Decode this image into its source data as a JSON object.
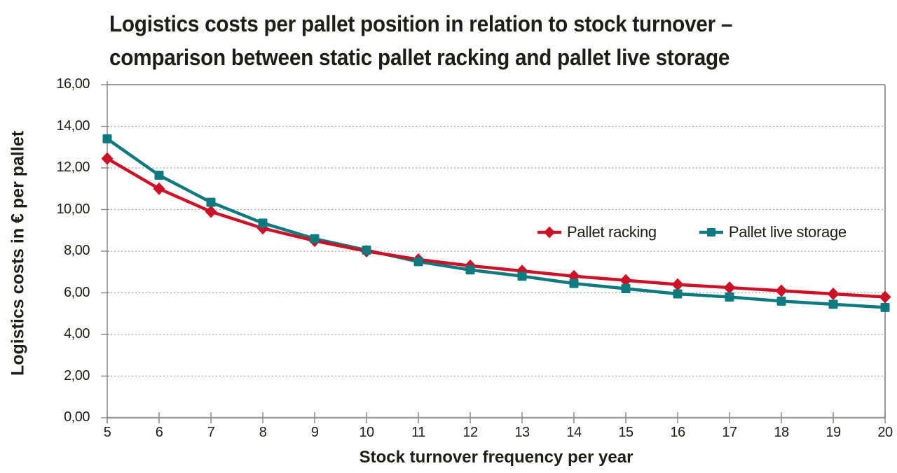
{
  "chart_data": {
    "type": "line",
    "title_lines": [
      "Logistics costs per pallet position in relation to stock turnover –",
      "comparison between static pallet racking and pallet live storage"
    ],
    "xlabel": "Stock turnover frequency per year",
    "ylabel": "Logistics costs in € per pallet",
    "xlim": [
      5,
      20
    ],
    "ylim": [
      0,
      16
    ],
    "x": [
      5,
      6,
      7,
      8,
      9,
      10,
      11,
      12,
      13,
      14,
      15,
      16,
      17,
      18,
      19,
      20
    ],
    "x_tick_labels": [
      "5",
      "6",
      "7",
      "8",
      "9",
      "10",
      "11",
      "12",
      "13",
      "14",
      "15",
      "16",
      "17",
      "18",
      "19",
      "20"
    ],
    "y_ticks": [
      16,
      14,
      12,
      10,
      8,
      6,
      4,
      2,
      0
    ],
    "y_tick_labels": [
      "16,00",
      "14,00",
      "12,00",
      "10,00",
      "8,00",
      "6,00",
      "4,00",
      "2,00",
      "0,00"
    ],
    "y_gridlines": [
      14,
      12,
      10,
      8,
      6,
      4,
      2
    ],
    "grid": "horizontal-dotted",
    "legend_position": "inside-right",
    "series": [
      {
        "name": "Pallet racking",
        "color": "#ce1126",
        "marker": "diamond",
        "values": [
          12.45,
          11.0,
          9.9,
          9.1,
          8.5,
          8.0,
          7.6,
          7.3,
          7.05,
          6.8,
          6.6,
          6.4,
          6.25,
          6.1,
          5.95,
          5.8
        ]
      },
      {
        "name": "Pallet live storage",
        "color": "#0d7a80",
        "marker": "square",
        "values": [
          13.4,
          11.65,
          10.35,
          9.35,
          8.6,
          8.05,
          7.5,
          7.1,
          6.8,
          6.45,
          6.2,
          5.95,
          5.8,
          5.6,
          5.45,
          5.3
        ]
      }
    ],
    "colors": {
      "axis": "#9a9a9a",
      "grid": "#a6a6a6",
      "text": "#1d1d1b"
    }
  }
}
